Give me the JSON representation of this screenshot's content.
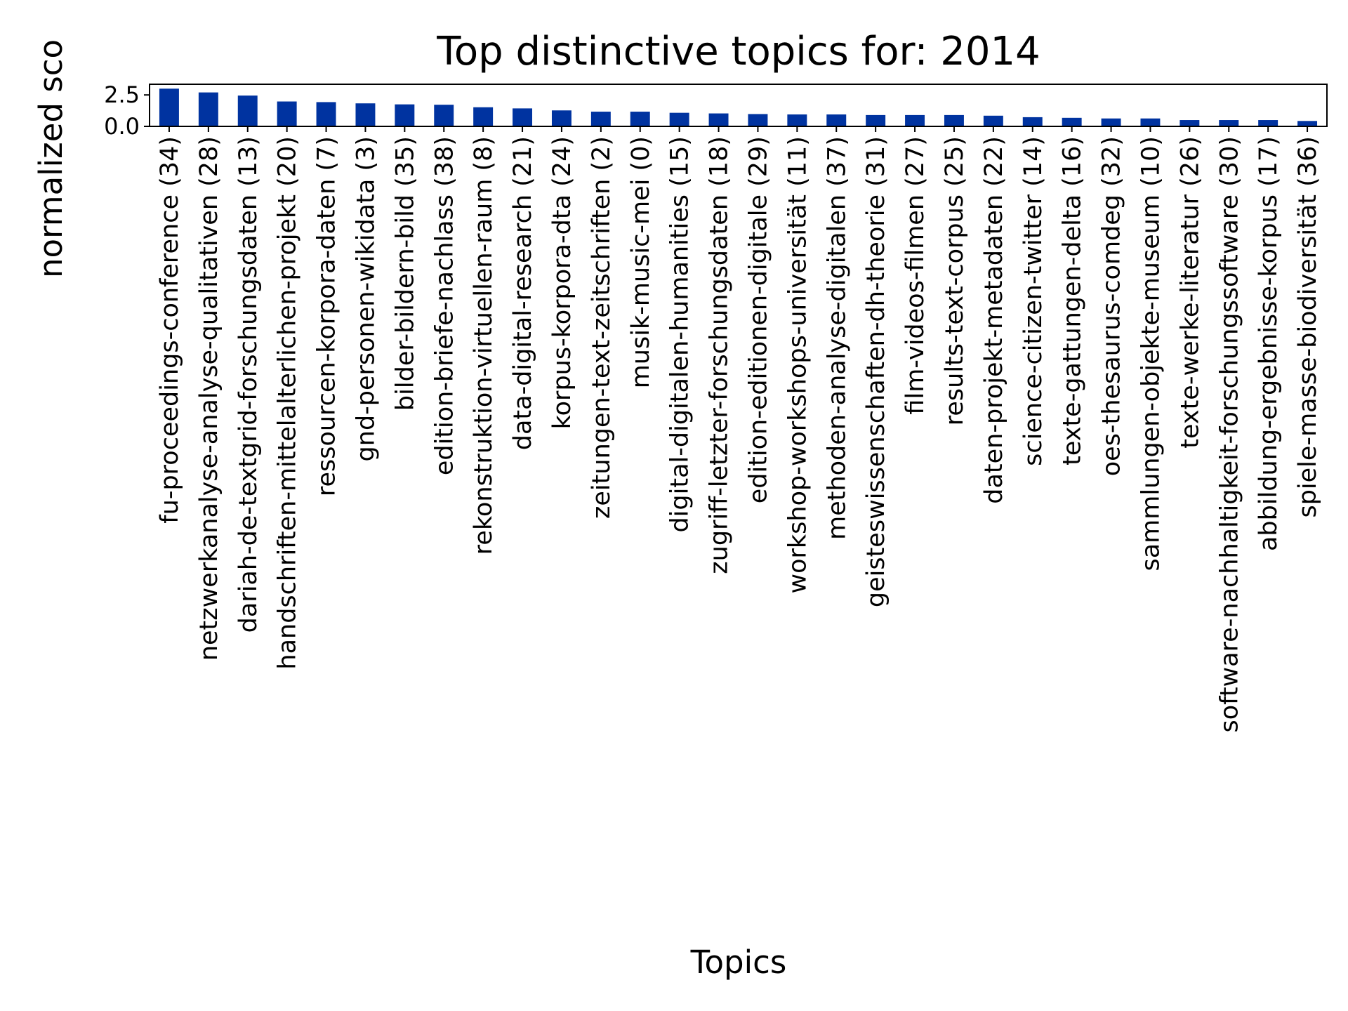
{
  "chart_data": {
    "type": "bar",
    "title": "Top distinctive topics for: 2014",
    "xlabel": "Topics",
    "ylabel": "normalized sco",
    "ylim": [
      0,
      3.35
    ],
    "yticks": [
      0.0,
      2.5
    ],
    "ytick_labels": [
      "0.0",
      "2.5"
    ],
    "grid": false,
    "legend": "none",
    "bar_color": "#0033A0",
    "categories": [
      "fu-proceedings-conference (34)",
      "netzwerkanalyse-analyse-qualitativen (28)",
      "dariah-de-textgrid-forschungsdaten (13)",
      "handschriften-mittelalterlichen-projekt (20)",
      "ressourcen-korpora-daten (7)",
      "gnd-personen-wikidata (3)",
      "bilder-bildern-bild (35)",
      "edition-briefe-nachlass (38)",
      "rekonstruktion-virtuellen-raum (8)",
      "data-digital-research (21)",
      "korpus-korpora-dta (24)",
      "zeitungen-text-zeitschriften (2)",
      "musik-music-mei (0)",
      "digital-digitalen-humanities (15)",
      "zugriff-letzter-forschungsdaten (18)",
      "edition-editionen-digitale (29)",
      "workshop-workshops-universität (11)",
      "methoden-analyse-digitalen (37)",
      "geisteswissenschaften-dh-theorie (31)",
      "film-videos-filmen (27)",
      "results-text-corpus (25)",
      "daten-projekt-metadaten (22)",
      "science-citizen-twitter (14)",
      "texte-gattungen-delta (16)",
      "oes-thesaurus-comdeg (32)",
      "sammlungen-objekte-museum (10)",
      "texte-werke-literatur (26)",
      "software-nachhaltigkeit-forschungssoftware (30)",
      "abbildung-ergebnisse-korpus (17)",
      "spiele-masse-biodiversität (36)"
    ],
    "values": [
      3.0,
      2.7,
      2.45,
      1.98,
      1.93,
      1.83,
      1.75,
      1.72,
      1.52,
      1.43,
      1.27,
      1.17,
      1.17,
      1.08,
      1.03,
      0.98,
      0.95,
      0.95,
      0.9,
      0.9,
      0.9,
      0.85,
      0.73,
      0.68,
      0.63,
      0.63,
      0.5,
      0.5,
      0.5,
      0.43
    ]
  }
}
